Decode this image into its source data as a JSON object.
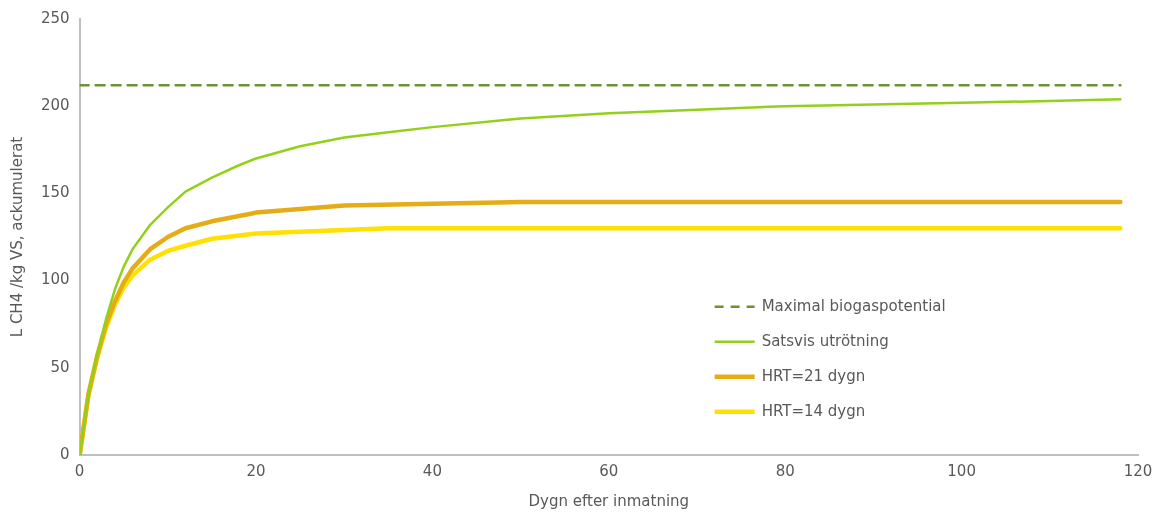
{
  "chart_data": {
    "type": "line",
    "xlabel": "Dygn efter inmatning",
    "ylabel": "L CH4 /kg VS, ackumulerat",
    "xlim": [
      0,
      120
    ],
    "xticks": [
      0,
      20,
      40,
      60,
      80,
      100,
      120
    ],
    "ylim": [
      0,
      250
    ],
    "yticks": [
      0,
      50,
      100,
      150,
      200,
      250
    ],
    "legend": "right",
    "marker": "none",
    "series": [
      {
        "name": "Maximal biogaspotential",
        "color": "#6e9230",
        "line_style": "dashed",
        "x": [
          0,
          118
        ],
        "values": [
          212,
          212
        ]
      },
      {
        "name": "Satsvis utrötning",
        "color": "#92d01a",
        "x": [
          0,
          1,
          2,
          3,
          4,
          5,
          6,
          8,
          10,
          12,
          15,
          18,
          20,
          25,
          30,
          35,
          40,
          50,
          60,
          70,
          80,
          90,
          100,
          110,
          118
        ],
        "values": [
          0,
          35,
          58,
          78,
          95,
          108,
          118,
          132,
          142,
          151,
          159,
          166,
          170,
          177,
          182,
          185,
          188,
          193,
          196,
          198,
          200,
          201,
          202,
          203,
          204
        ]
      },
      {
        "name": "HRT=21 dygn",
        "color": "#e6ac16",
        "x": [
          0,
          1,
          2,
          3,
          4,
          5,
          6,
          8,
          10,
          12,
          15,
          20,
          25,
          30,
          40,
          50,
          118
        ],
        "values": [
          0,
          35,
          57,
          75,
          88,
          99,
          107,
          118,
          125,
          130,
          134,
          139,
          141,
          143,
          144,
          145,
          145
        ]
      },
      {
        "name": "HRT=14 dygn",
        "color": "#ffe000",
        "x": [
          0,
          1,
          2,
          3,
          4,
          5,
          6,
          8,
          10,
          12,
          15,
          20,
          25,
          30,
          35,
          118
        ],
        "values": [
          0,
          34,
          56,
          73,
          86,
          96,
          103,
          112,
          117,
          120,
          124,
          127,
          128,
          129,
          130,
          130
        ]
      }
    ]
  }
}
